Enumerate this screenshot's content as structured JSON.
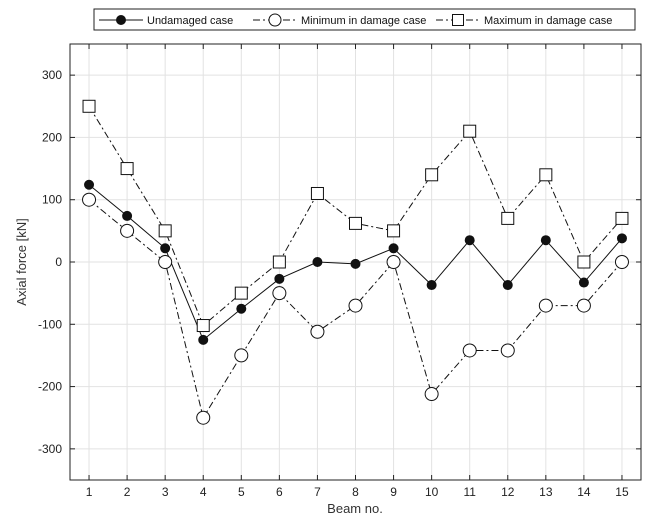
{
  "chart_data": {
    "type": "line",
    "xlabel": "Beam no.",
    "ylabel": "Axial force [kN]",
    "x": [
      1,
      2,
      3,
      4,
      5,
      6,
      7,
      8,
      9,
      10,
      11,
      12,
      13,
      14,
      15
    ],
    "xlim": [
      0.5,
      15.5
    ],
    "ylim": [
      -350,
      350
    ],
    "yticks": [
      -300,
      -200,
      -100,
      0,
      100,
      200,
      300
    ],
    "grid": true,
    "legend_position": "top",
    "series": [
      {
        "name": "Undamaged case",
        "marker": "filled-circle",
        "line_style": "solid",
        "values": [
          124,
          74,
          22,
          -125,
          -75,
          -27,
          0,
          -3,
          22,
          -37,
          35,
          -37,
          35,
          -33,
          38
        ]
      },
      {
        "name": "Minimum in damage case",
        "marker": "open-circle",
        "line_style": "dash-dot",
        "values": [
          100,
          50,
          0,
          -250,
          -150,
          -50,
          -112,
          -70,
          0,
          -212,
          -142,
          -142,
          -70,
          -70,
          0
        ]
      },
      {
        "name": "Maximum in damage case",
        "marker": "open-square",
        "line_style": "dash-dot",
        "values": [
          250,
          150,
          50,
          -102,
          -50,
          0,
          110,
          62,
          50,
          140,
          210,
          70,
          140,
          0,
          70
        ]
      }
    ]
  }
}
